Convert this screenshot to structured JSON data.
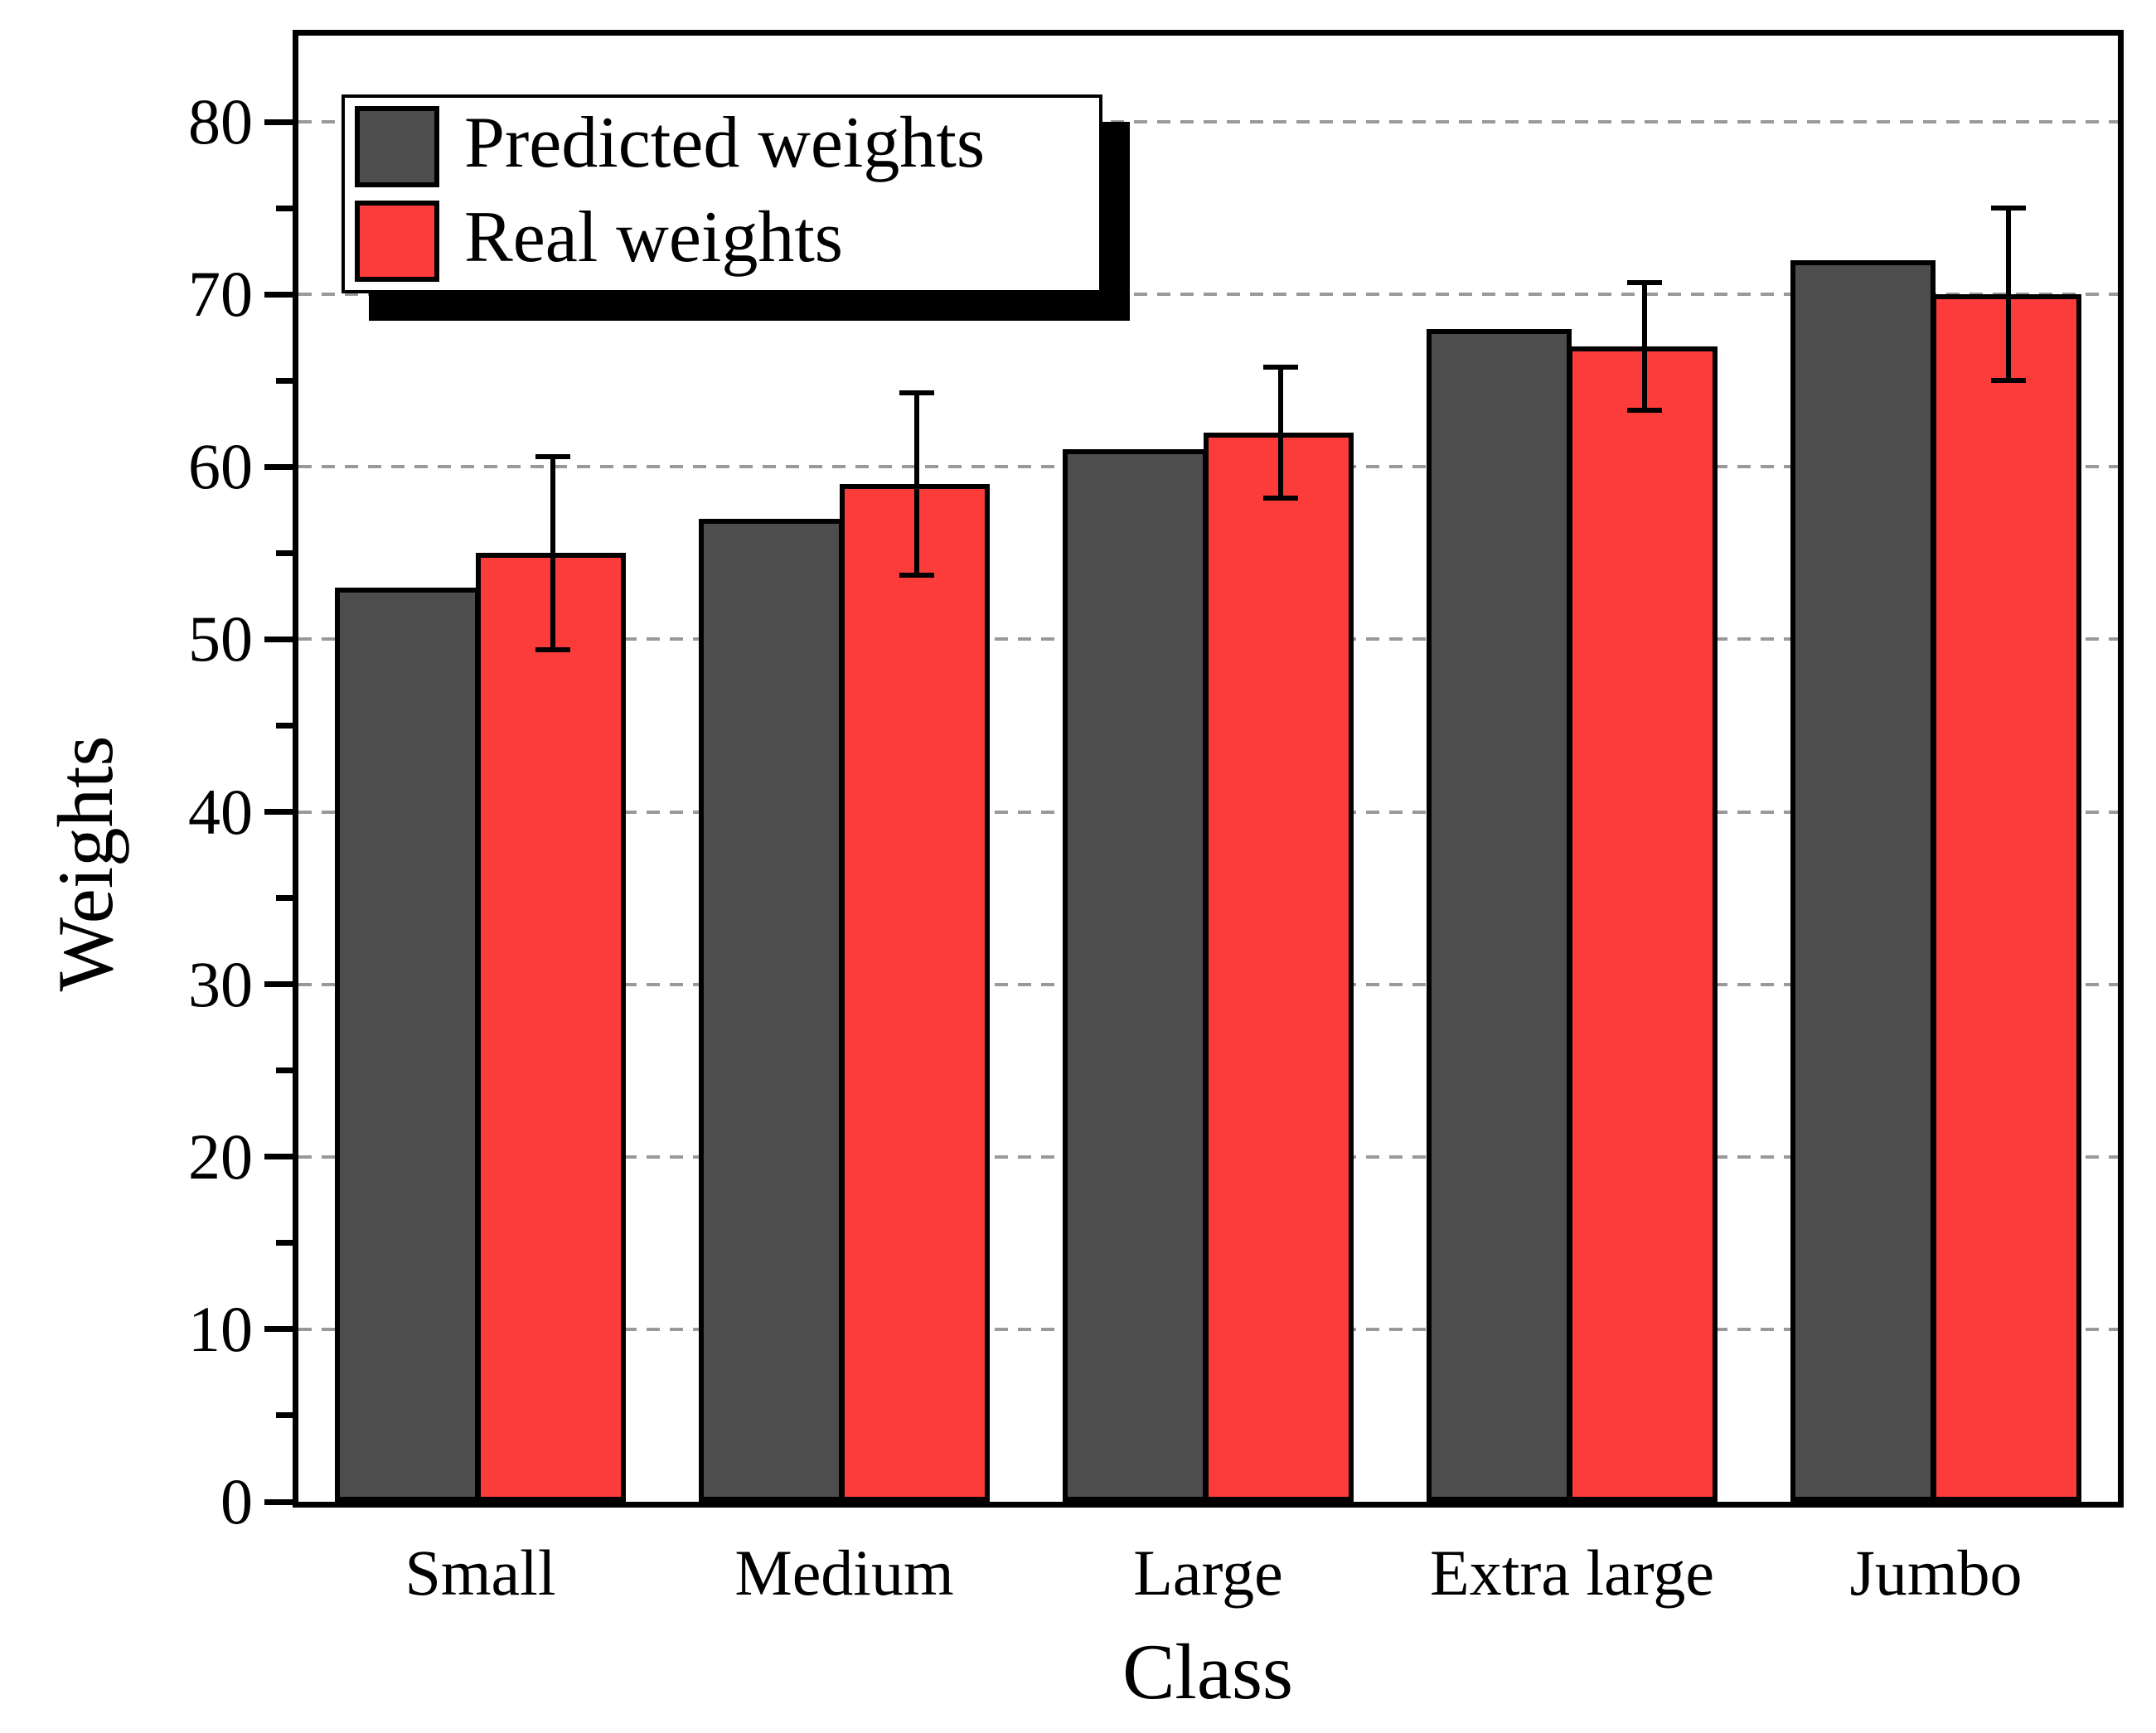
{
  "figure": {
    "xlabel": "Class",
    "ylabel": "Weights",
    "background_color": "#ffffff",
    "frame_color": "#000000",
    "gridline_color": "#999999"
  },
  "legend": {
    "position": "top-left",
    "shadow": true,
    "items": [
      {
        "label": "Predicted weights",
        "color": "#4d4d4d"
      },
      {
        "label": "Real weights",
        "color": "#fc3b3b"
      }
    ]
  },
  "chart_data": {
    "type": "bar",
    "title": "",
    "xlabel": "Class",
    "ylabel": "Weights",
    "categories": [
      "Small",
      "Medium",
      "Large",
      "Extra large",
      "Jumbo"
    ],
    "series": [
      {
        "name": "Predicted weights",
        "color": "#4d4d4d",
        "values": [
          53,
          57,
          61,
          68,
          72
        ]
      },
      {
        "name": "Real weights",
        "color": "#fc3b3b",
        "values": [
          55,
          59,
          62,
          67,
          70
        ],
        "error_bars": [
          5.6,
          5.3,
          3.8,
          3.7,
          5.0
        ]
      }
    ],
    "ylim": [
      0,
      85
    ],
    "ytick_major_step": 10,
    "ytick_minor_step": 5,
    "ytick_labels": [
      "0",
      "10",
      "20",
      "30",
      "40",
      "50",
      "60",
      "70",
      "80"
    ],
    "grid": "horizontal dashed at major ticks",
    "legend_position": "top-left",
    "bar_edge_color": "#000000",
    "error_bar_color": "#000000"
  }
}
